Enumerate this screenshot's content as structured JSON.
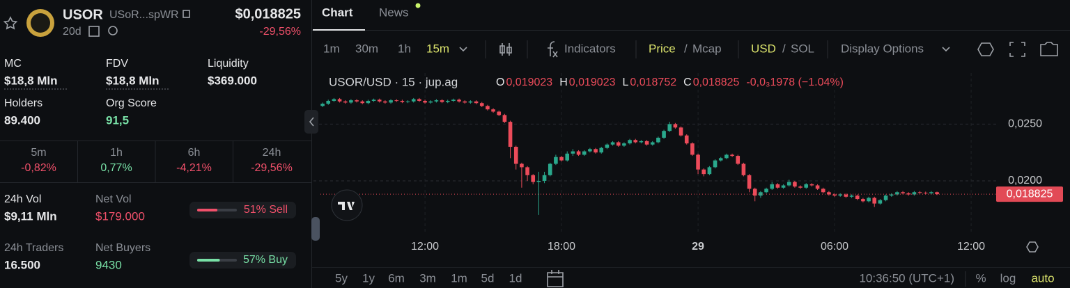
{
  "token": {
    "symbol": "USOR",
    "address": "USoR...spWR",
    "age": "20d",
    "price": "$0,018825",
    "change": "-29,56%"
  },
  "stats": [
    {
      "label": "MC",
      "value": "$18,8 Mln"
    },
    {
      "label": "FDV",
      "value": "$18,8 Mln"
    },
    {
      "label": "Liquidity",
      "value": "$369.000"
    },
    {
      "label": "Holders",
      "value": "89.400"
    },
    {
      "label": "Org Score",
      "value": "91,5"
    }
  ],
  "periods": [
    {
      "label": "5m",
      "value": "-0,82%"
    },
    {
      "label": "1h",
      "value": "0,77%"
    },
    {
      "label": "6h",
      "value": "-4,21%"
    },
    {
      "label": "24h",
      "value": "-29,56%"
    }
  ],
  "trading": {
    "vol_label": "24h Vol",
    "vol": "$9,11 Mln",
    "net_vol_label": "Net Vol",
    "net_vol": "$179.000",
    "sell": {
      "percent": 51,
      "label": "51% Sell"
    },
    "traders_label": "24h Traders",
    "traders": "16.500",
    "net_buyers_label": "Net Buyers",
    "net_buyers": "9430",
    "buy": {
      "percent": 57,
      "label": "57% Buy"
    }
  },
  "tabs": [
    "Chart",
    "News"
  ],
  "toolbar": {
    "intervals": [
      "1m",
      "30m",
      "1h",
      "15m"
    ],
    "indicators": "Indicators",
    "price": "Price",
    "mcap": "Mcap",
    "usd": "USD",
    "sol": "SOL",
    "separator": "/",
    "display": "Display Options"
  },
  "chart": {
    "type": "candlestick",
    "symbol": "USOR/USD · 15 · jup.ag",
    "ohlc": [
      {
        "key": "O",
        "value": "0,019023"
      },
      {
        "key": "H",
        "value": "0,019023"
      },
      {
        "key": "L",
        "value": "0,018752"
      },
      {
        "key": "C",
        "value": "0,018825"
      }
    ],
    "change": "-0,0₃1978 (−1.04%)",
    "xlim": [
      7.1,
      37.1
    ],
    "ylim": [
      0.0154,
      0.0295
    ],
    "xticks": [
      {
        "value": 12,
        "label": "12:00"
      },
      {
        "value": 18,
        "label": "18:00"
      },
      {
        "value": 24,
        "label": "29"
      },
      {
        "value": 30,
        "label": "06:00"
      },
      {
        "value": 36,
        "label": "12:00"
      }
    ],
    "yticks": [
      {
        "value": 0.02,
        "label": "0,0200"
      },
      {
        "value": 0.025,
        "label": "0,0250"
      }
    ],
    "last_price": {
      "value": 0.018825,
      "label": "0,018825"
    },
    "up_color": "#2aa88c",
    "down_color": "#ec4b5a",
    "candles": [
      [
        7.5,
        0.0266,
        0.0269,
        0.0265,
        0.0268
      ],
      [
        7.75,
        0.0268,
        0.02715,
        0.0267,
        0.02705
      ],
      [
        8,
        0.02705,
        0.0273,
        0.02695,
        0.0272
      ],
      [
        8.25,
        0.0272,
        0.0273,
        0.0269,
        0.027
      ],
      [
        8.5,
        0.027,
        0.0271,
        0.0268,
        0.0269
      ],
      [
        8.75,
        0.0269,
        0.0272,
        0.0268,
        0.0271
      ],
      [
        9,
        0.0271,
        0.0272,
        0.0269,
        0.027
      ],
      [
        9.25,
        0.027,
        0.0271,
        0.02675,
        0.02685
      ],
      [
        9.5,
        0.02685,
        0.02715,
        0.02675,
        0.02705
      ],
      [
        9.75,
        0.02705,
        0.02725,
        0.02695,
        0.02715
      ],
      [
        10,
        0.02715,
        0.02725,
        0.0269,
        0.027
      ],
      [
        10.25,
        0.027,
        0.0271,
        0.0268,
        0.0269
      ],
      [
        10.5,
        0.0269,
        0.0272,
        0.0268,
        0.0271
      ],
      [
        10.75,
        0.0271,
        0.0272,
        0.02695,
        0.02705
      ],
      [
        11,
        0.02705,
        0.02715,
        0.02685,
        0.02695
      ],
      [
        11.25,
        0.02695,
        0.0271,
        0.02685,
        0.027
      ],
      [
        11.5,
        0.027,
        0.0273,
        0.0269,
        0.0272
      ],
      [
        11.75,
        0.0272,
        0.0273,
        0.02695,
        0.02705
      ],
      [
        12,
        0.02705,
        0.02715,
        0.0268,
        0.0269
      ],
      [
        12.25,
        0.0269,
        0.0271,
        0.0268,
        0.027
      ],
      [
        12.5,
        0.027,
        0.0272,
        0.0269,
        0.0271
      ],
      [
        12.75,
        0.0271,
        0.0272,
        0.02685,
        0.02695
      ],
      [
        13,
        0.02695,
        0.02715,
        0.02685,
        0.02705
      ],
      [
        13.25,
        0.02705,
        0.02725,
        0.02695,
        0.02715
      ],
      [
        13.5,
        0.02715,
        0.02725,
        0.0269,
        0.027
      ],
      [
        13.75,
        0.027,
        0.0271,
        0.0268,
        0.0269
      ],
      [
        14,
        0.0269,
        0.0271,
        0.0268,
        0.027
      ],
      [
        14.25,
        0.027,
        0.0271,
        0.02675,
        0.02685
      ],
      [
        14.5,
        0.02685,
        0.02695,
        0.0265,
        0.0266
      ],
      [
        14.75,
        0.0266,
        0.0267,
        0.0262,
        0.0263
      ],
      [
        15,
        0.0263,
        0.0264,
        0.026,
        0.0261
      ],
      [
        15.25,
        0.0261,
        0.0262,
        0.0257,
        0.0258
      ],
      [
        15.5,
        0.0258,
        0.0259,
        0.0251,
        0.0252
      ],
      [
        15.75,
        0.0252,
        0.0253,
        0.022,
        0.023
      ],
      [
        16,
        0.023,
        0.0231,
        0.021,
        0.0215
      ],
      [
        16.25,
        0.0215,
        0.0216,
        0.0194,
        0.0212
      ],
      [
        16.5,
        0.0212,
        0.0213,
        0.02,
        0.0205
      ],
      [
        16.75,
        0.0205,
        0.0206,
        0.0197,
        0.0199
      ],
      [
        17,
        0.0199,
        0.0208,
        0.017,
        0.02
      ],
      [
        17.25,
        0.02,
        0.0208,
        0.0198,
        0.0205
      ],
      [
        17.5,
        0.0205,
        0.0216,
        0.0204,
        0.0215
      ],
      [
        17.75,
        0.0215,
        0.0223,
        0.0214,
        0.0221
      ],
      [
        18,
        0.0221,
        0.0222,
        0.0217,
        0.0218
      ],
      [
        18.25,
        0.0218,
        0.0226,
        0.0217,
        0.0224
      ],
      [
        18.5,
        0.0224,
        0.0228,
        0.0222,
        0.0226
      ],
      [
        18.75,
        0.0226,
        0.0227,
        0.0222,
        0.0223
      ],
      [
        19,
        0.0223,
        0.0227,
        0.0222,
        0.0226
      ],
      [
        19.25,
        0.0226,
        0.0229,
        0.0225,
        0.0228
      ],
      [
        19.5,
        0.0228,
        0.0229,
        0.0224,
        0.0225
      ],
      [
        19.75,
        0.0225,
        0.023,
        0.0224,
        0.0229
      ],
      [
        20,
        0.0229,
        0.0233,
        0.0228,
        0.0232
      ],
      [
        20.25,
        0.0232,
        0.0235,
        0.0231,
        0.0234
      ],
      [
        20.5,
        0.0234,
        0.0235,
        0.023,
        0.0231
      ],
      [
        20.75,
        0.0231,
        0.0234,
        0.023,
        0.0233
      ],
      [
        21,
        0.0233,
        0.0237,
        0.0232,
        0.0236
      ],
      [
        21.25,
        0.0236,
        0.0237,
        0.0233,
        0.0234
      ],
      [
        21.5,
        0.0234,
        0.0236,
        0.0233,
        0.0235
      ],
      [
        21.75,
        0.0235,
        0.0236,
        0.0231,
        0.0232
      ],
      [
        22,
        0.0232,
        0.0235,
        0.0231,
        0.0234
      ],
      [
        22.25,
        0.0234,
        0.0239,
        0.0233,
        0.0238
      ],
      [
        22.5,
        0.0238,
        0.0245,
        0.0237,
        0.0244
      ],
      [
        22.75,
        0.0244,
        0.0252,
        0.0243,
        0.025
      ],
      [
        23,
        0.025,
        0.0251,
        0.0246,
        0.0247
      ],
      [
        23.25,
        0.0247,
        0.0248,
        0.0239,
        0.024
      ],
      [
        23.5,
        0.024,
        0.0241,
        0.0232,
        0.0233
      ],
      [
        23.75,
        0.0233,
        0.0234,
        0.0222,
        0.0223
      ],
      [
        24,
        0.0223,
        0.0224,
        0.0206,
        0.021
      ],
      [
        24.25,
        0.021,
        0.0211,
        0.0204,
        0.0206
      ],
      [
        24.5,
        0.0206,
        0.0213,
        0.0205,
        0.0212
      ],
      [
        24.75,
        0.0212,
        0.0219,
        0.0211,
        0.0218
      ],
      [
        25,
        0.0218,
        0.0221,
        0.0217,
        0.022
      ],
      [
        25.25,
        0.022,
        0.0224,
        0.0219,
        0.0223
      ],
      [
        25.5,
        0.0223,
        0.0224,
        0.0221,
        0.0222
      ],
      [
        25.75,
        0.0222,
        0.0223,
        0.0214,
        0.0215
      ],
      [
        26,
        0.0215,
        0.0216,
        0.0204,
        0.0205
      ],
      [
        26.25,
        0.0205,
        0.0206,
        0.019,
        0.0193
      ],
      [
        26.5,
        0.0193,
        0.0194,
        0.0182,
        0.0187
      ],
      [
        26.75,
        0.0187,
        0.0191,
        0.0185,
        0.019
      ],
      [
        27,
        0.019,
        0.0194,
        0.0189,
        0.0193
      ],
      [
        27.25,
        0.0193,
        0.0199,
        0.0192,
        0.0197
      ],
      [
        27.5,
        0.0197,
        0.0198,
        0.0193,
        0.0194
      ],
      [
        27.75,
        0.0194,
        0.0197,
        0.0193,
        0.0196
      ],
      [
        28,
        0.0196,
        0.0201,
        0.0195,
        0.0199
      ],
      [
        28.25,
        0.0199,
        0.02,
        0.0194,
        0.0195
      ],
      [
        28.5,
        0.0195,
        0.0196,
        0.0193,
        0.0194
      ],
      [
        28.75,
        0.0194,
        0.0198,
        0.0193,
        0.0197
      ],
      [
        29,
        0.0197,
        0.0198,
        0.0195,
        0.0196
      ],
      [
        29.25,
        0.0196,
        0.0197,
        0.0192,
        0.0193
      ],
      [
        29.5,
        0.0193,
        0.0194,
        0.0189,
        0.019
      ],
      [
        29.75,
        0.019,
        0.0191,
        0.0187,
        0.0188
      ],
      [
        30,
        0.0188,
        0.0189,
        0.0186,
        0.0187
      ],
      [
        30.25,
        0.0187,
        0.0189,
        0.0186,
        0.0188
      ],
      [
        30.5,
        0.0188,
        0.0189,
        0.0185,
        0.0186
      ],
      [
        30.75,
        0.0186,
        0.0188,
        0.0185,
        0.0187
      ],
      [
        31,
        0.0187,
        0.0188,
        0.0183,
        0.0184
      ],
      [
        31.25,
        0.0184,
        0.0185,
        0.0181,
        0.0182
      ],
      [
        31.5,
        0.0182,
        0.0186,
        0.0181,
        0.0185
      ],
      [
        31.75,
        0.0185,
        0.0186,
        0.0177,
        0.018
      ],
      [
        32,
        0.018,
        0.0184,
        0.0179,
        0.0183
      ],
      [
        32.25,
        0.0183,
        0.0188,
        0.0182,
        0.0187
      ],
      [
        32.5,
        0.0187,
        0.0189,
        0.0186,
        0.0188
      ],
      [
        32.75,
        0.0188,
        0.0191,
        0.0187,
        0.019
      ],
      [
        33,
        0.019,
        0.0191,
        0.0188,
        0.0189
      ],
      [
        33.25,
        0.0189,
        0.019,
        0.0187,
        0.0188
      ],
      [
        33.5,
        0.0188,
        0.0191,
        0.0187,
        0.019
      ],
      [
        33.75,
        0.019,
        0.0191,
        0.01885,
        0.01895
      ],
      [
        34,
        0.01895,
        0.01905,
        0.0188,
        0.0189
      ],
      [
        34.25,
        0.0189,
        0.0191,
        0.0188,
        0.019
      ],
      [
        34.5,
        0.019,
        0.01905,
        0.01875,
        0.018825
      ]
    ]
  },
  "footer": {
    "ranges": [
      "5y",
      "1y",
      "6m",
      "3m",
      "1m",
      "5d",
      "1d"
    ],
    "clock": "10:36:50 (UTC+1)",
    "percent": "%",
    "log": "log",
    "auto": "auto"
  }
}
